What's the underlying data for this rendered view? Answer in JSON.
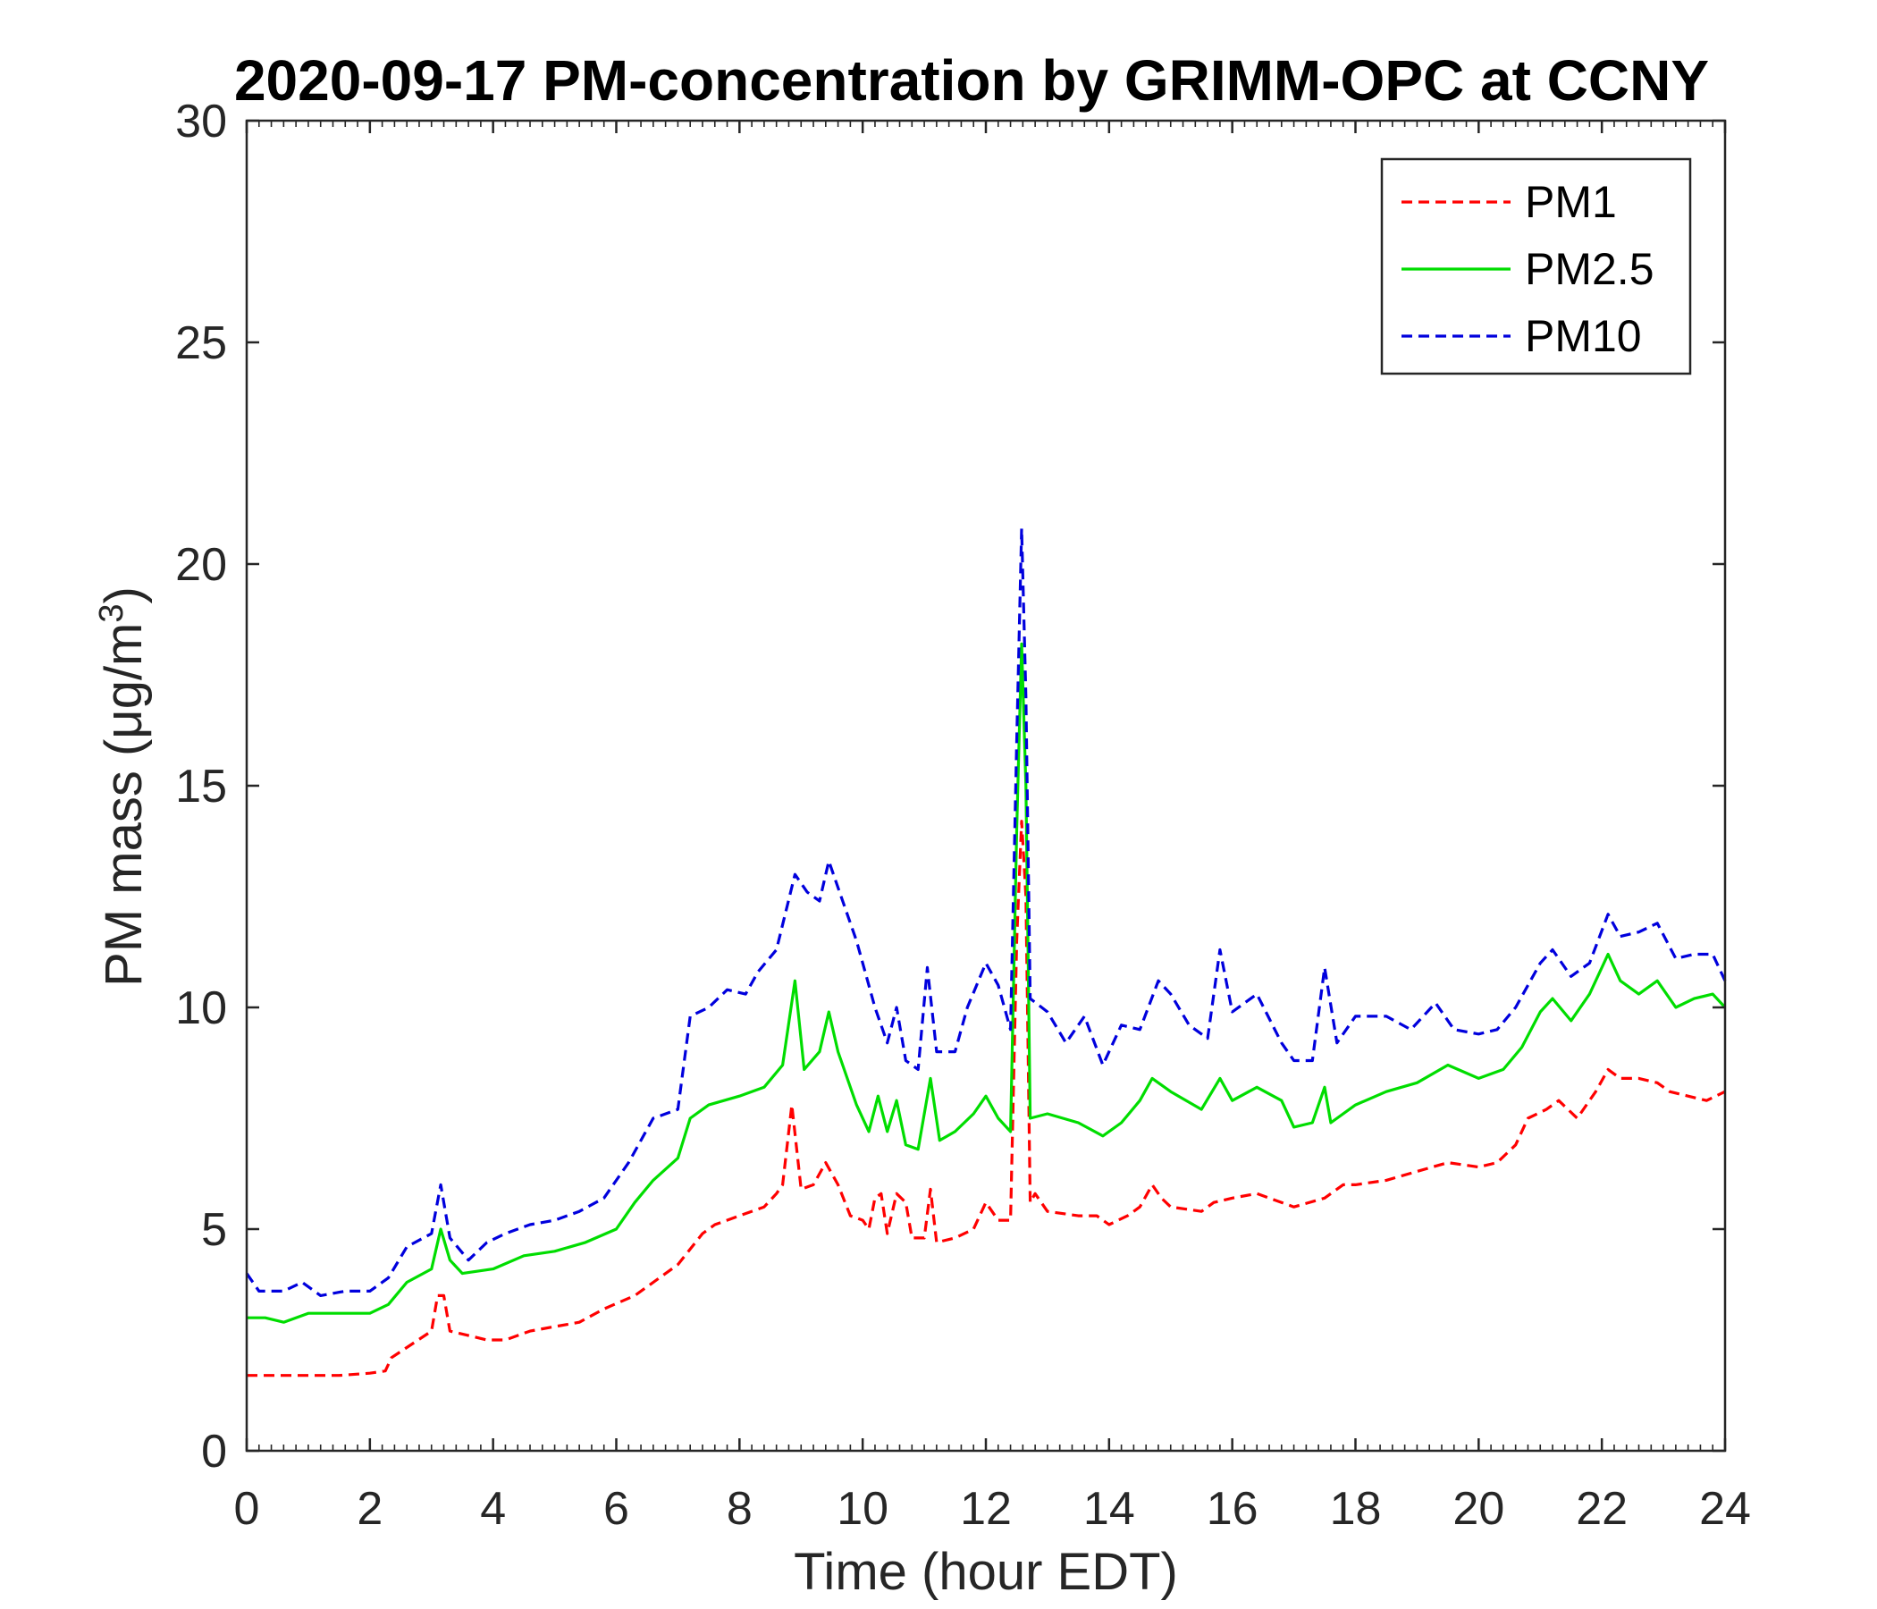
{
  "chart_data": {
    "type": "line",
    "title": "2020-09-17 PM-concentration by GRIMM-OPC at CCNY",
    "xlabel": "Time (hour EDT)",
    "ylabel": "PM mass (μg/m3)",
    "xlim": [
      0,
      24
    ],
    "ylim": [
      0,
      30
    ],
    "xticks": [
      0,
      2,
      4,
      6,
      8,
      10,
      12,
      14,
      16,
      18,
      20,
      22,
      24
    ],
    "yticks": [
      0,
      5,
      10,
      15,
      20,
      25,
      30
    ],
    "grid": false,
    "legend_position": "top-right",
    "series": [
      {
        "name": "PM1",
        "color": "#ff0000",
        "style": "dashed",
        "points": [
          [
            0,
            1.7
          ],
          [
            0.5,
            1.7
          ],
          [
            1.0,
            1.7
          ],
          [
            1.5,
            1.7
          ],
          [
            2.0,
            1.75
          ],
          [
            2.25,
            1.8
          ],
          [
            2.35,
            2.1
          ],
          [
            3.0,
            2.7
          ],
          [
            3.1,
            3.5
          ],
          [
            3.2,
            3.5
          ],
          [
            3.3,
            2.7
          ],
          [
            3.9,
            2.5
          ],
          [
            4.2,
            2.5
          ],
          [
            4.6,
            2.7
          ],
          [
            5.0,
            2.8
          ],
          [
            5.4,
            2.9
          ],
          [
            5.8,
            3.2
          ],
          [
            6.3,
            3.5
          ],
          [
            6.7,
            3.9
          ],
          [
            7.0,
            4.2
          ],
          [
            7.4,
            4.9
          ],
          [
            7.6,
            5.1
          ],
          [
            8.0,
            5.3
          ],
          [
            8.4,
            5.5
          ],
          [
            8.6,
            5.8
          ],
          [
            8.7,
            6.0
          ],
          [
            8.85,
            7.8
          ],
          [
            9.0,
            5.9
          ],
          [
            9.2,
            6.0
          ],
          [
            9.4,
            6.5
          ],
          [
            9.6,
            6.0
          ],
          [
            9.8,
            5.3
          ],
          [
            10.0,
            5.2
          ],
          [
            10.1,
            5.0
          ],
          [
            10.2,
            5.7
          ],
          [
            10.3,
            5.8
          ],
          [
            10.4,
            4.9
          ],
          [
            10.55,
            5.8
          ],
          [
            10.7,
            5.6
          ],
          [
            10.8,
            4.8
          ],
          [
            11.0,
            4.8
          ],
          [
            11.1,
            5.9
          ],
          [
            11.2,
            4.7
          ],
          [
            11.5,
            4.8
          ],
          [
            11.8,
            5.0
          ],
          [
            12.0,
            5.6
          ],
          [
            12.2,
            5.2
          ],
          [
            12.4,
            5.2
          ],
          [
            12.5,
            11.5
          ],
          [
            12.58,
            14.2
          ],
          [
            12.65,
            12.5
          ],
          [
            12.72,
            5.6
          ],
          [
            12.8,
            5.8
          ],
          [
            13.0,
            5.4
          ],
          [
            13.5,
            5.3
          ],
          [
            13.8,
            5.3
          ],
          [
            14.0,
            5.1
          ],
          [
            14.3,
            5.3
          ],
          [
            14.5,
            5.5
          ],
          [
            14.7,
            6.0
          ],
          [
            14.85,
            5.7
          ],
          [
            15.0,
            5.5
          ],
          [
            15.5,
            5.4
          ],
          [
            15.7,
            5.6
          ],
          [
            16.0,
            5.7
          ],
          [
            16.4,
            5.8
          ],
          [
            16.8,
            5.6
          ],
          [
            17.0,
            5.5
          ],
          [
            17.5,
            5.7
          ],
          [
            17.8,
            6.0
          ],
          [
            18.0,
            6.0
          ],
          [
            18.5,
            6.1
          ],
          [
            19.0,
            6.3
          ],
          [
            19.5,
            6.5
          ],
          [
            20.0,
            6.4
          ],
          [
            20.3,
            6.5
          ],
          [
            20.6,
            6.9
          ],
          [
            20.8,
            7.5
          ],
          [
            21.1,
            7.7
          ],
          [
            21.3,
            7.9
          ],
          [
            21.6,
            7.5
          ],
          [
            21.9,
            8.1
          ],
          [
            22.1,
            8.6
          ],
          [
            22.3,
            8.4
          ],
          [
            22.6,
            8.4
          ],
          [
            22.9,
            8.3
          ],
          [
            23.1,
            8.1
          ],
          [
            23.4,
            8.0
          ],
          [
            23.7,
            7.9
          ],
          [
            24.0,
            8.1
          ]
        ]
      },
      {
        "name": "PM2.5",
        "color": "#00dd00",
        "style": "solid",
        "points": [
          [
            0,
            3.0
          ],
          [
            0.3,
            3.0
          ],
          [
            0.6,
            2.9
          ],
          [
            1.0,
            3.1
          ],
          [
            1.5,
            3.1
          ],
          [
            2.0,
            3.1
          ],
          [
            2.3,
            3.3
          ],
          [
            2.6,
            3.8
          ],
          [
            3.0,
            4.1
          ],
          [
            3.15,
            5.0
          ],
          [
            3.3,
            4.3
          ],
          [
            3.5,
            4.0
          ],
          [
            4.0,
            4.1
          ],
          [
            4.5,
            4.4
          ],
          [
            5.0,
            4.5
          ],
          [
            5.5,
            4.7
          ],
          [
            6.0,
            5.0
          ],
          [
            6.3,
            5.6
          ],
          [
            6.6,
            6.1
          ],
          [
            7.0,
            6.6
          ],
          [
            7.2,
            7.5
          ],
          [
            7.5,
            7.8
          ],
          [
            8.0,
            8.0
          ],
          [
            8.4,
            8.2
          ],
          [
            8.7,
            8.7
          ],
          [
            8.9,
            10.6
          ],
          [
            9.05,
            8.6
          ],
          [
            9.3,
            9.0
          ],
          [
            9.45,
            9.9
          ],
          [
            9.6,
            9.0
          ],
          [
            9.9,
            7.8
          ],
          [
            10.1,
            7.2
          ],
          [
            10.25,
            8.0
          ],
          [
            10.4,
            7.2
          ],
          [
            10.55,
            7.9
          ],
          [
            10.7,
            6.9
          ],
          [
            10.9,
            6.8
          ],
          [
            11.1,
            8.4
          ],
          [
            11.25,
            7.0
          ],
          [
            11.5,
            7.2
          ],
          [
            11.8,
            7.6
          ],
          [
            12.0,
            8.0
          ],
          [
            12.2,
            7.5
          ],
          [
            12.4,
            7.2
          ],
          [
            12.5,
            14.0
          ],
          [
            12.58,
            18.2
          ],
          [
            12.65,
            15.0
          ],
          [
            12.72,
            7.5
          ],
          [
            13.0,
            7.6
          ],
          [
            13.5,
            7.4
          ],
          [
            13.9,
            7.1
          ],
          [
            14.2,
            7.4
          ],
          [
            14.5,
            7.9
          ],
          [
            14.7,
            8.4
          ],
          [
            15.0,
            8.1
          ],
          [
            15.5,
            7.7
          ],
          [
            15.8,
            8.4
          ],
          [
            16.0,
            7.9
          ],
          [
            16.4,
            8.2
          ],
          [
            16.8,
            7.9
          ],
          [
            17.0,
            7.3
          ],
          [
            17.3,
            7.4
          ],
          [
            17.5,
            8.2
          ],
          [
            17.6,
            7.4
          ],
          [
            18.0,
            7.8
          ],
          [
            18.5,
            8.1
          ],
          [
            19.0,
            8.3
          ],
          [
            19.5,
            8.7
          ],
          [
            20.0,
            8.4
          ],
          [
            20.4,
            8.6
          ],
          [
            20.7,
            9.1
          ],
          [
            21.0,
            9.9
          ],
          [
            21.2,
            10.2
          ],
          [
            21.5,
            9.7
          ],
          [
            21.8,
            10.3
          ],
          [
            22.1,
            11.2
          ],
          [
            22.3,
            10.6
          ],
          [
            22.6,
            10.3
          ],
          [
            22.9,
            10.6
          ],
          [
            23.2,
            10.0
          ],
          [
            23.5,
            10.2
          ],
          [
            23.8,
            10.3
          ],
          [
            24.0,
            10.0
          ]
        ]
      },
      {
        "name": "PM10",
        "color": "#0000dd",
        "style": "dashed",
        "points": [
          [
            0,
            4.0
          ],
          [
            0.2,
            3.6
          ],
          [
            0.6,
            3.6
          ],
          [
            0.9,
            3.8
          ],
          [
            1.2,
            3.5
          ],
          [
            1.6,
            3.6
          ],
          [
            2.0,
            3.6
          ],
          [
            2.3,
            3.9
          ],
          [
            2.6,
            4.6
          ],
          [
            3.0,
            4.9
          ],
          [
            3.15,
            6.0
          ],
          [
            3.3,
            4.8
          ],
          [
            3.6,
            4.3
          ],
          [
            3.9,
            4.7
          ],
          [
            4.2,
            4.9
          ],
          [
            4.6,
            5.1
          ],
          [
            5.0,
            5.2
          ],
          [
            5.4,
            5.4
          ],
          [
            5.8,
            5.7
          ],
          [
            6.2,
            6.5
          ],
          [
            6.6,
            7.5
          ],
          [
            7.0,
            7.7
          ],
          [
            7.2,
            9.8
          ],
          [
            7.5,
            10.0
          ],
          [
            7.8,
            10.4
          ],
          [
            8.1,
            10.3
          ],
          [
            8.3,
            10.8
          ],
          [
            8.6,
            11.3
          ],
          [
            8.9,
            13.0
          ],
          [
            9.1,
            12.6
          ],
          [
            9.3,
            12.4
          ],
          [
            9.45,
            13.3
          ],
          [
            9.7,
            12.3
          ],
          [
            9.9,
            11.5
          ],
          [
            10.0,
            11.0
          ],
          [
            10.2,
            10.0
          ],
          [
            10.4,
            9.2
          ],
          [
            10.55,
            10.0
          ],
          [
            10.7,
            8.8
          ],
          [
            10.9,
            8.6
          ],
          [
            11.05,
            10.9
          ],
          [
            11.2,
            9.0
          ],
          [
            11.5,
            9.0
          ],
          [
            11.7,
            10.0
          ],
          [
            12.0,
            11.0
          ],
          [
            12.2,
            10.5
          ],
          [
            12.4,
            9.5
          ],
          [
            12.5,
            16.0
          ],
          [
            12.58,
            20.8
          ],
          [
            12.65,
            17.0
          ],
          [
            12.72,
            10.2
          ],
          [
            13.0,
            9.9
          ],
          [
            13.3,
            9.2
          ],
          [
            13.6,
            9.8
          ],
          [
            13.9,
            8.7
          ],
          [
            14.2,
            9.6
          ],
          [
            14.5,
            9.5
          ],
          [
            14.8,
            10.6
          ],
          [
            15.0,
            10.3
          ],
          [
            15.3,
            9.6
          ],
          [
            15.6,
            9.3
          ],
          [
            15.8,
            11.3
          ],
          [
            16.0,
            9.9
          ],
          [
            16.4,
            10.3
          ],
          [
            16.8,
            9.2
          ],
          [
            17.0,
            8.8
          ],
          [
            17.3,
            8.8
          ],
          [
            17.5,
            10.9
          ],
          [
            17.7,
            9.2
          ],
          [
            18.0,
            9.8
          ],
          [
            18.5,
            9.8
          ],
          [
            18.9,
            9.5
          ],
          [
            19.3,
            10.1
          ],
          [
            19.6,
            9.5
          ],
          [
            20.0,
            9.4
          ],
          [
            20.3,
            9.5
          ],
          [
            20.6,
            10.0
          ],
          [
            21.0,
            11.0
          ],
          [
            21.2,
            11.3
          ],
          [
            21.5,
            10.7
          ],
          [
            21.8,
            11.0
          ],
          [
            22.1,
            12.1
          ],
          [
            22.3,
            11.6
          ],
          [
            22.6,
            11.7
          ],
          [
            22.9,
            11.9
          ],
          [
            23.2,
            11.1
          ],
          [
            23.5,
            11.2
          ],
          [
            23.8,
            11.2
          ],
          [
            24.0,
            10.6
          ]
        ]
      }
    ]
  }
}
